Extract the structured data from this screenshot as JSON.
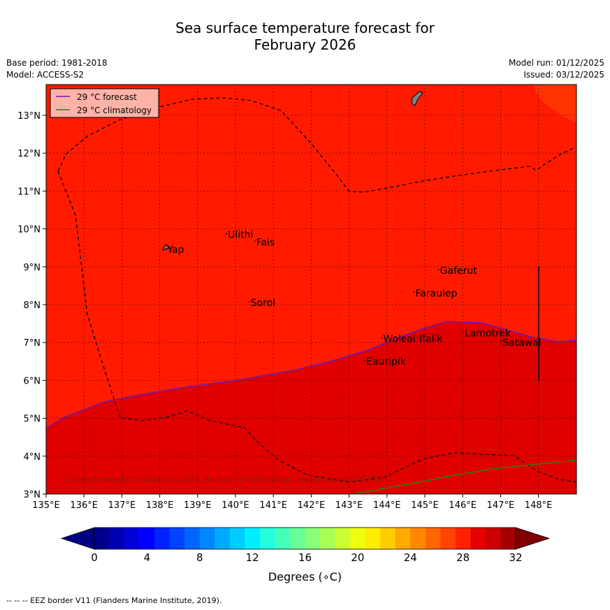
{
  "title_line1": "Sea surface temperature forecast for",
  "title_line2": "February 2026",
  "base_period": "Base period: 1981-2018",
  "model": "Model: ACCESS-S2",
  "model_run": "Model run: 01/12/2025",
  "issued": "Issued: 03/12/2025",
  "legend": {
    "forecast": "29 °C  forecast",
    "climatology": "29 °C  climatology",
    "forecast_color": "#6a1bb0",
    "climatology_color": "#2e7d12"
  },
  "copyright": "© Commonwealth of Australia 2025, Bureau of Meteorology, supported by COSPPac",
  "colorbar": {
    "label": "Degrees (∘C)",
    "ticks": [
      "0",
      "4",
      "8",
      "12",
      "16",
      "20",
      "24",
      "28",
      "32"
    ],
    "colors": [
      "#00008b",
      "#0000b3",
      "#0000d9",
      "#0000ff",
      "#0022ff",
      "#0044ff",
      "#0066ff",
      "#0088ff",
      "#00aaff",
      "#00ccff",
      "#00eeff",
      "#22ffdd",
      "#44ffbb",
      "#66ff99",
      "#88ff77",
      "#aaff55",
      "#ccff33",
      "#eeff11",
      "#ffee00",
      "#ffcc00",
      "#ffaa00",
      "#ff8800",
      "#ff6600",
      "#ff4400",
      "#ff2200",
      "#e60000",
      "#cc0000",
      "#a30000"
    ],
    "under_color": "#000080",
    "over_color": "#800000"
  },
  "footer": "--  --  -- EEZ border V11 (Flanders Marine Institute, 2019).",
  "map": {
    "lon_labels": [
      "135°E",
      "136°E",
      "137°E",
      "138°E",
      "139°E",
      "140°E",
      "141°E",
      "142°E",
      "143°E",
      "144°E",
      "145°E",
      "146°E",
      "147°E",
      "148°E"
    ],
    "lat_labels": [
      "3°N",
      "4°N",
      "5°N",
      "6°N",
      "7°N",
      "8°N",
      "9°N",
      "10°N",
      "11°N",
      "12°N",
      "13°N"
    ],
    "sst_colors": {
      "main": "#ff1a00",
      "warm": "#e00000",
      "cooler": "#ff3300"
    },
    "places": [
      {
        "name": "Yap",
        "lon": 138.2,
        "lat": 9.4
      },
      {
        "name": "Ulithi",
        "lon": 139.8,
        "lat": 9.8
      },
      {
        "name": "Fais",
        "lon": 140.55,
        "lat": 9.6
      },
      {
        "name": "Sorol",
        "lon": 140.4,
        "lat": 8.0
      },
      {
        "name": "Gaferut",
        "lon": 145.4,
        "lat": 8.85
      },
      {
        "name": "Faraulep",
        "lon": 144.75,
        "lat": 8.25
      },
      {
        "name": "Woleai",
        "lon": 143.9,
        "lat": 7.05
      },
      {
        "name": "Ifalik",
        "lon": 144.85,
        "lat": 7.05
      },
      {
        "name": "Lamotrek",
        "lon": 146.05,
        "lat": 7.2
      },
      {
        "name": "Satawal",
        "lon": 147.05,
        "lat": 6.95
      },
      {
        "name": "Eauripik",
        "lon": 143.45,
        "lat": 6.45
      }
    ]
  }
}
